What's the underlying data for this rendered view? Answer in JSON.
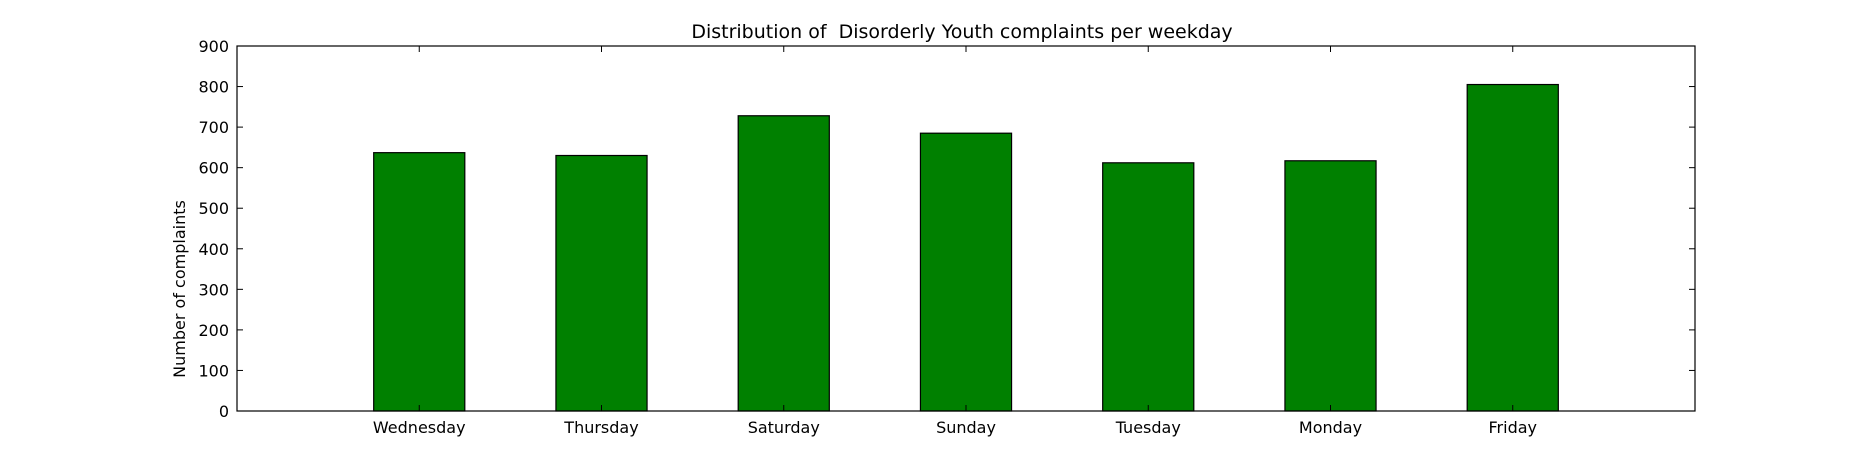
{
  "chart_data": {
    "type": "bar",
    "title": "Distribution of  Disorderly Youth complaints per weekday",
    "xlabel": "",
    "ylabel": "Number of complaints",
    "categories": [
      "Wednesday",
      "Thursday",
      "Saturday",
      "Sunday",
      "Tuesday",
      "Monday",
      "Friday"
    ],
    "values": [
      637,
      630,
      728,
      685,
      612,
      617,
      805
    ],
    "ylim": [
      0,
      900
    ],
    "yticks": [
      0,
      100,
      200,
      300,
      400,
      500,
      600,
      700,
      800,
      900
    ],
    "bar_color": "#008000",
    "edge_color": "#000000",
    "grid": false,
    "legend": "none"
  }
}
